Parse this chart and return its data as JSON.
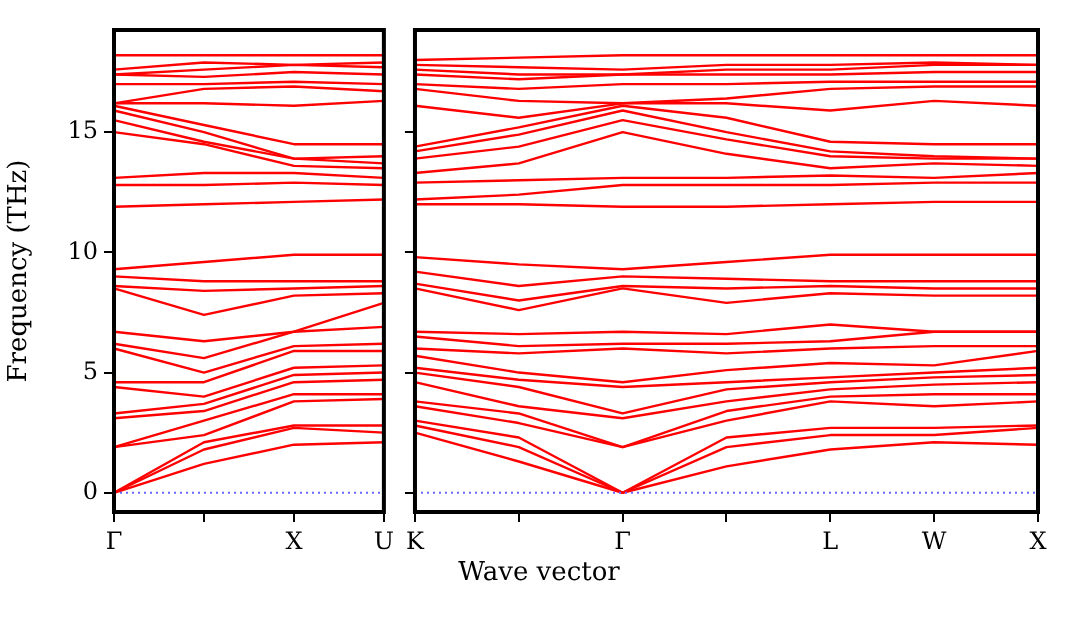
{
  "chart_data": [
    {
      "type": "line",
      "ylabel": "Frequency (THz)",
      "categories": [
        "Γ",
        null,
        "X",
        "U"
      ],
      "ylim": [
        -0.8,
        19.25
      ],
      "yticks": [
        0,
        5,
        10,
        15
      ],
      "grid": false,
      "legend": false,
      "ref_lines": [
        {
          "axis": "y",
          "value": 0,
          "color": "#6666ff",
          "line_style": "dotted"
        }
      ],
      "series": [
        {
          "color": "#ff0000",
          "values": [
            0,
            1.2,
            2.0,
            2.1
          ]
        },
        {
          "color": "#ff0000",
          "values": [
            0,
            1.8,
            2.7,
            2.5
          ]
        },
        {
          "color": "#ff0000",
          "values": [
            0,
            2.1,
            2.8,
            2.8
          ]
        },
        {
          "color": "#ff0000",
          "values": [
            1.9,
            2.4,
            3.8,
            3.9
          ]
        },
        {
          "color": "#ff0000",
          "values": [
            1.9,
            3.0,
            4.1,
            4.1
          ]
        },
        {
          "color": "#ff0000",
          "values": [
            3.1,
            3.4,
            4.6,
            4.7
          ]
        },
        {
          "color": "#ff0000",
          "values": [
            3.3,
            3.7,
            4.9,
            5.0
          ]
        },
        {
          "color": "#ff0000",
          "values": [
            4.4,
            4.0,
            5.2,
            5.3
          ]
        },
        {
          "color": "#ff0000",
          "values": [
            4.6,
            4.6,
            5.9,
            5.9
          ]
        },
        {
          "color": "#ff0000",
          "values": [
            6.0,
            5.0,
            6.1,
            6.2
          ]
        },
        {
          "color": "#ff0000",
          "values": [
            6.2,
            5.6,
            6.7,
            6.9
          ]
        },
        {
          "color": "#ff0000",
          "values": [
            6.7,
            6.3,
            6.7,
            7.9
          ]
        },
        {
          "color": "#ff0000",
          "values": [
            8.5,
            7.4,
            8.2,
            8.3
          ]
        },
        {
          "color": "#ff0000",
          "values": [
            8.6,
            8.4,
            8.5,
            8.6
          ]
        },
        {
          "color": "#ff0000",
          "values": [
            9.0,
            8.8,
            8.8,
            8.8
          ]
        },
        {
          "color": "#ff0000",
          "values": [
            9.3,
            9.6,
            9.9,
            9.9
          ]
        },
        {
          "color": "#ff0000",
          "values": [
            11.9,
            12.0,
            12.1,
            12.2
          ]
        },
        {
          "color": "#ff0000",
          "values": [
            12.8,
            12.8,
            12.9,
            12.8
          ]
        },
        {
          "color": "#ff0000",
          "values": [
            13.1,
            13.3,
            13.3,
            13.1
          ]
        },
        {
          "color": "#ff0000",
          "values": [
            15.0,
            14.5,
            13.6,
            13.5
          ]
        },
        {
          "color": "#ff0000",
          "values": [
            15.5,
            14.6,
            13.9,
            13.7
          ]
        },
        {
          "color": "#ff0000",
          "values": [
            15.9,
            15.0,
            13.9,
            14.0
          ]
        },
        {
          "color": "#ff0000",
          "values": [
            16.1,
            15.3,
            14.5,
            14.5
          ]
        },
        {
          "color": "#ff0000",
          "values": [
            16.2,
            16.2,
            16.1,
            16.3
          ]
        },
        {
          "color": "#ff0000",
          "values": [
            16.2,
            16.8,
            16.9,
            16.7
          ]
        },
        {
          "color": "#ff0000",
          "values": [
            17.0,
            17.0,
            17.1,
            17.0
          ]
        },
        {
          "color": "#ff0000",
          "values": [
            17.4,
            17.3,
            17.5,
            17.4
          ]
        },
        {
          "color": "#ff0000",
          "values": [
            17.4,
            17.6,
            17.8,
            17.7
          ]
        },
        {
          "color": "#ff0000",
          "values": [
            17.6,
            17.9,
            17.8,
            17.9
          ]
        },
        {
          "color": "#ff0000",
          "values": [
            18.2,
            18.2,
            18.2,
            18.2
          ]
        }
      ]
    },
    {
      "type": "line",
      "xlabel": "Wave vector",
      "categories": [
        "K",
        null,
        "Γ",
        null,
        "L",
        "W",
        "X"
      ],
      "ylim": [
        -0.8,
        19.25
      ],
      "yticks": [
        0,
        5,
        10,
        15
      ],
      "tick_labels": "x",
      "grid": false,
      "legend": false,
      "ref_lines": [
        {
          "axis": "y",
          "value": 0,
          "color": "#6666ff",
          "line_style": "dotted"
        }
      ],
      "series": [
        {
          "color": "#ff0000",
          "values": [
            2.5,
            1.3,
            0,
            1.1,
            1.8,
            2.1,
            2.0
          ]
        },
        {
          "color": "#ff0000",
          "values": [
            2.8,
            1.9,
            0,
            1.9,
            2.4,
            2.4,
            2.7
          ]
        },
        {
          "color": "#ff0000",
          "values": [
            3.0,
            2.3,
            0,
            2.3,
            2.7,
            2.7,
            2.8
          ]
        },
        {
          "color": "#ff0000",
          "values": [
            3.6,
            2.9,
            1.9,
            3.0,
            3.8,
            3.6,
            3.8
          ]
        },
        {
          "color": "#ff0000",
          "values": [
            3.8,
            3.3,
            1.9,
            3.4,
            4.0,
            4.1,
            4.1
          ]
        },
        {
          "color": "#ff0000",
          "values": [
            4.6,
            3.6,
            3.1,
            3.8,
            4.3,
            4.5,
            4.6
          ]
        },
        {
          "color": "#ff0000",
          "values": [
            5.0,
            4.4,
            3.3,
            4.3,
            4.6,
            4.8,
            4.9
          ]
        },
        {
          "color": "#ff0000",
          "values": [
            5.2,
            4.7,
            4.4,
            4.6,
            4.8,
            5.0,
            5.2
          ]
        },
        {
          "color": "#ff0000",
          "values": [
            5.7,
            5.0,
            4.6,
            5.1,
            5.4,
            5.3,
            5.9
          ]
        },
        {
          "color": "#ff0000",
          "values": [
            6.0,
            5.8,
            6.0,
            5.8,
            6.0,
            6.1,
            6.1
          ]
        },
        {
          "color": "#ff0000",
          "values": [
            6.5,
            6.1,
            6.2,
            6.2,
            6.3,
            6.7,
            6.7
          ]
        },
        {
          "color": "#ff0000",
          "values": [
            6.7,
            6.6,
            6.7,
            6.6,
            7.0,
            6.7,
            6.7
          ]
        },
        {
          "color": "#ff0000",
          "values": [
            8.5,
            7.6,
            8.5,
            7.9,
            8.3,
            8.2,
            8.2
          ]
        },
        {
          "color": "#ff0000",
          "values": [
            8.7,
            8.0,
            8.6,
            8.5,
            8.6,
            8.5,
            8.5
          ]
        },
        {
          "color": "#ff0000",
          "values": [
            9.2,
            8.6,
            9.0,
            8.9,
            8.8,
            8.8,
            8.8
          ]
        },
        {
          "color": "#ff0000",
          "values": [
            9.8,
            9.5,
            9.3,
            9.6,
            9.9,
            9.9,
            9.9
          ]
        },
        {
          "color": "#ff0000",
          "values": [
            12.0,
            12.0,
            11.9,
            11.9,
            12.0,
            12.1,
            12.1
          ]
        },
        {
          "color": "#ff0000",
          "values": [
            12.2,
            12.4,
            12.8,
            12.8,
            12.8,
            12.9,
            12.9
          ]
        },
        {
          "color": "#ff0000",
          "values": [
            12.9,
            13.0,
            13.1,
            13.1,
            13.2,
            13.1,
            13.3
          ]
        },
        {
          "color": "#ff0000",
          "values": [
            13.3,
            13.7,
            15.0,
            14.1,
            13.5,
            13.7,
            13.6
          ]
        },
        {
          "color": "#ff0000",
          "values": [
            13.9,
            14.4,
            15.5,
            14.7,
            14.0,
            13.9,
            13.9
          ]
        },
        {
          "color": "#ff0000",
          "values": [
            14.2,
            14.9,
            15.9,
            15.0,
            14.2,
            14.0,
            13.9
          ]
        },
        {
          "color": "#ff0000",
          "values": [
            14.4,
            15.2,
            16.1,
            15.6,
            14.6,
            14.5,
            14.5
          ]
        },
        {
          "color": "#ff0000",
          "values": [
            16.1,
            15.6,
            16.2,
            16.2,
            15.9,
            16.3,
            16.1
          ]
        },
        {
          "color": "#ff0000",
          "values": [
            16.8,
            16.3,
            16.2,
            16.4,
            16.8,
            16.9,
            16.9
          ]
        },
        {
          "color": "#ff0000",
          "values": [
            17.0,
            16.8,
            17.0,
            17.0,
            17.1,
            17.1,
            17.1
          ]
        },
        {
          "color": "#ff0000",
          "values": [
            17.4,
            17.2,
            17.4,
            17.4,
            17.4,
            17.5,
            17.5
          ]
        },
        {
          "color": "#ff0000",
          "values": [
            17.6,
            17.4,
            17.4,
            17.6,
            17.6,
            17.8,
            17.8
          ]
        },
        {
          "color": "#ff0000",
          "values": [
            17.8,
            17.7,
            17.6,
            17.8,
            17.8,
            17.9,
            17.8
          ]
        },
        {
          "color": "#ff0000",
          "values": [
            18.0,
            18.1,
            18.2,
            18.2,
            18.2,
            18.2,
            18.2
          ]
        }
      ]
    }
  ]
}
